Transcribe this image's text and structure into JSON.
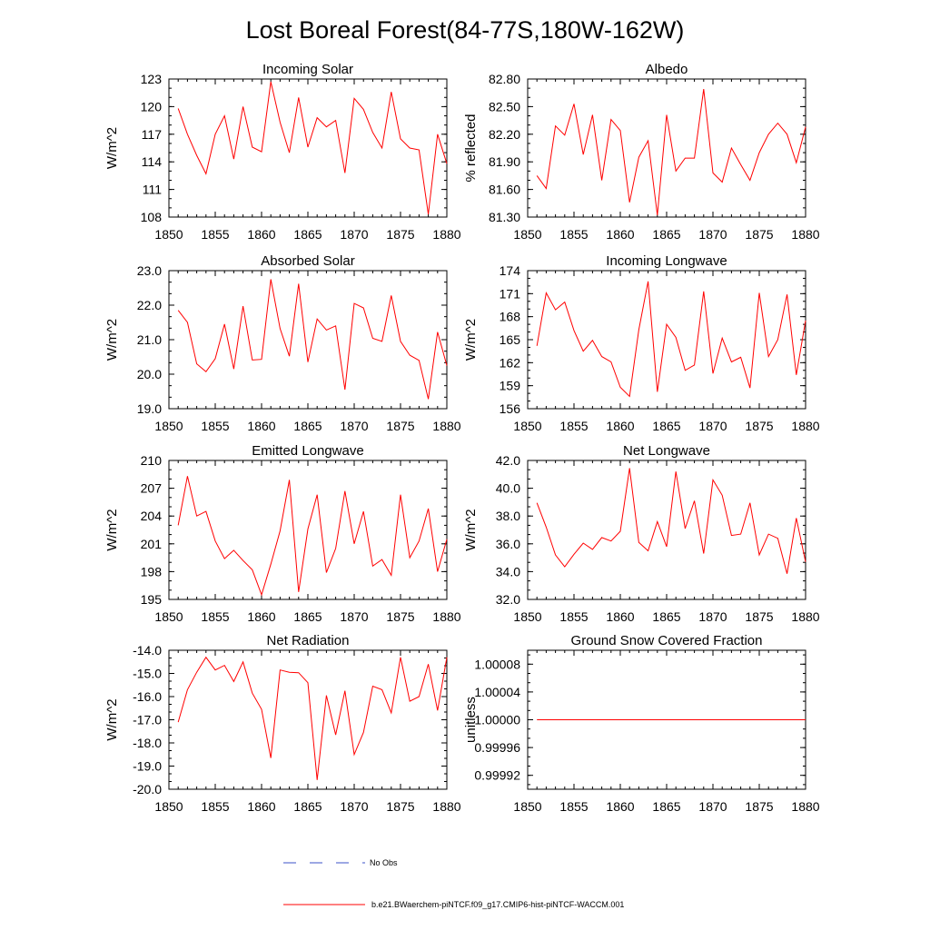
{
  "figure": {
    "title": "Lost Boreal Forest(84-77S,180W-162W)"
  },
  "legend": {
    "items": [
      {
        "label": "No Obs",
        "color": "#3b50c8",
        "style": "dashed"
      },
      {
        "label": "b.e21.BWaerchem-piNTCF.f09_g17.CMIP6-hist-piNTCF-WACCM.001",
        "color": "#ff0000",
        "style": "solid"
      }
    ]
  },
  "chart_data": [
    {
      "type": "line",
      "title": "Incoming Solar",
      "ylabel": "W/m^2",
      "xlim": [
        1850,
        1880
      ],
      "ylim": [
        108,
        123
      ],
      "xticks": [
        "1850",
        "1855",
        "1860",
        "1865",
        "1870",
        "1875",
        "1880"
      ],
      "yticks": [
        "108",
        "111",
        "114",
        "117",
        "120",
        "123"
      ],
      "series": [
        {
          "color": "#ff0000",
          "x": [
            1851,
            1852,
            1853,
            1854,
            1855,
            1856,
            1857,
            1858,
            1859,
            1860,
            1861,
            1862,
            1863,
            1864,
            1865,
            1866,
            1867,
            1868,
            1869,
            1870,
            1871,
            1872,
            1873,
            1874,
            1875,
            1876,
            1877,
            1878,
            1879,
            1880
          ],
          "values": [
            119.8,
            117.0,
            114.7,
            112.7,
            117.0,
            119.0,
            114.3,
            120.0,
            115.6,
            115.1,
            122.7,
            118.3,
            115.0,
            121.0,
            115.6,
            118.8,
            117.8,
            118.5,
            112.8,
            120.9,
            119.7,
            117.2,
            115.5,
            121.6,
            116.5,
            115.5,
            115.3,
            108.3,
            117.0,
            113.8
          ]
        }
      ]
    },
    {
      "type": "line",
      "title": "Albedo",
      "ylabel": "% reflected",
      "xlim": [
        1850,
        1880
      ],
      "ylim": [
        81.3,
        82.8
      ],
      "xticks": [
        "1850",
        "1855",
        "1860",
        "1865",
        "1870",
        "1875",
        "1880"
      ],
      "yticks": [
        "81.30",
        "81.60",
        "81.90",
        "82.20",
        "82.50",
        "82.80"
      ],
      "series": [
        {
          "color": "#ff0000",
          "x": [
            1851,
            1852,
            1853,
            1854,
            1855,
            1856,
            1857,
            1858,
            1859,
            1860,
            1861,
            1862,
            1863,
            1864,
            1865,
            1866,
            1867,
            1868,
            1869,
            1870,
            1871,
            1872,
            1873,
            1874,
            1875,
            1876,
            1877,
            1878,
            1879,
            1880
          ],
          "values": [
            81.75,
            81.61,
            82.29,
            82.19,
            82.53,
            81.98,
            82.41,
            81.7,
            82.36,
            82.24,
            81.46,
            81.95,
            82.13,
            81.32,
            82.41,
            81.8,
            81.94,
            81.94,
            82.69,
            81.78,
            81.68,
            82.05,
            81.87,
            81.7,
            82.0,
            82.2,
            82.32,
            82.2,
            81.89,
            82.28
          ]
        }
      ]
    },
    {
      "type": "line",
      "title": "Absorbed Solar",
      "ylabel": "W/m^2",
      "xlim": [
        1850,
        1880
      ],
      "ylim": [
        19.0,
        23.0
      ],
      "xticks": [
        "1850",
        "1855",
        "1860",
        "1865",
        "1870",
        "1875",
        "1880"
      ],
      "yticks": [
        "19.0",
        "20.0",
        "21.0",
        "22.0",
        "23.0"
      ],
      "series": [
        {
          "color": "#ff0000",
          "x": [
            1851,
            1852,
            1853,
            1854,
            1855,
            1856,
            1857,
            1858,
            1859,
            1860,
            1861,
            1862,
            1863,
            1864,
            1865,
            1866,
            1867,
            1868,
            1869,
            1870,
            1871,
            1872,
            1873,
            1874,
            1875,
            1876,
            1877,
            1878,
            1879,
            1880
          ],
          "values": [
            21.85,
            21.5,
            20.3,
            20.07,
            20.45,
            21.45,
            20.15,
            21.97,
            20.41,
            20.43,
            22.75,
            21.32,
            20.52,
            22.62,
            20.35,
            21.6,
            21.28,
            21.4,
            19.55,
            22.05,
            21.92,
            21.04,
            20.95,
            22.28,
            20.95,
            20.55,
            20.4,
            19.28,
            21.22,
            20.25
          ]
        }
      ]
    },
    {
      "type": "line",
      "title": "Incoming Longwave",
      "ylabel": "W/m^2",
      "xlim": [
        1850,
        1880
      ],
      "ylim": [
        156,
        174
      ],
      "xticks": [
        "1850",
        "1855",
        "1860",
        "1865",
        "1870",
        "1875",
        "1880"
      ],
      "yticks": [
        "156",
        "159",
        "162",
        "165",
        "168",
        "171",
        "174"
      ],
      "series": [
        {
          "color": "#ff0000",
          "x": [
            1851,
            1852,
            1853,
            1854,
            1855,
            1856,
            1857,
            1858,
            1859,
            1860,
            1861,
            1862,
            1863,
            1864,
            1865,
            1866,
            1867,
            1868,
            1869,
            1870,
            1871,
            1872,
            1873,
            1874,
            1875,
            1876,
            1877,
            1878,
            1879,
            1880
          ],
          "values": [
            164.2,
            171.1,
            168.9,
            169.9,
            166.2,
            163.5,
            164.9,
            162.8,
            162.1,
            158.8,
            157.6,
            166.3,
            172.6,
            158.2,
            167.0,
            165.3,
            161.0,
            161.7,
            171.3,
            160.6,
            165.2,
            162.1,
            162.7,
            158.7,
            171.1,
            162.8,
            165.0,
            170.9,
            160.4,
            167.5
          ]
        }
      ]
    },
    {
      "type": "line",
      "title": "Emitted Longwave",
      "ylabel": "W/m^2",
      "xlim": [
        1850,
        1880
      ],
      "ylim": [
        195,
        210
      ],
      "xticks": [
        "1850",
        "1855",
        "1860",
        "1865",
        "1870",
        "1875",
        "1880"
      ],
      "yticks": [
        "195",
        "198",
        "201",
        "204",
        "207",
        "210"
      ],
      "series": [
        {
          "color": "#ff0000",
          "x": [
            1851,
            1852,
            1853,
            1854,
            1855,
            1856,
            1857,
            1858,
            1859,
            1860,
            1861,
            1862,
            1863,
            1864,
            1865,
            1866,
            1867,
            1868,
            1869,
            1870,
            1871,
            1872,
            1873,
            1874,
            1875,
            1876,
            1877,
            1878,
            1879,
            1880
          ],
          "values": [
            203.0,
            208.3,
            204.0,
            204.5,
            201.3,
            199.4,
            200.3,
            199.2,
            198.2,
            195.5,
            198.8,
            202.4,
            207.9,
            195.8,
            202.6,
            206.3,
            197.9,
            200.5,
            206.7,
            201.0,
            204.5,
            198.6,
            199.3,
            197.6,
            206.3,
            199.5,
            201.3,
            204.8,
            198.0,
            201.5
          ]
        }
      ]
    },
    {
      "type": "line",
      "title": "Net Longwave",
      "ylabel": "W/m^2",
      "xlim": [
        1850,
        1880
      ],
      "ylim": [
        32.0,
        42.0
      ],
      "xticks": [
        "1850",
        "1855",
        "1860",
        "1865",
        "1870",
        "1875",
        "1880"
      ],
      "yticks": [
        "32.0",
        "34.0",
        "36.0",
        "38.0",
        "40.0",
        "42.0"
      ],
      "series": [
        {
          "color": "#ff0000",
          "x": [
            1851,
            1852,
            1853,
            1854,
            1855,
            1856,
            1857,
            1858,
            1859,
            1860,
            1861,
            1862,
            1863,
            1864,
            1865,
            1866,
            1867,
            1868,
            1869,
            1870,
            1871,
            1872,
            1873,
            1874,
            1875,
            1876,
            1877,
            1878,
            1879,
            1880
          ],
          "values": [
            38.95,
            37.2,
            35.2,
            34.35,
            35.25,
            36.05,
            35.6,
            36.45,
            36.2,
            36.9,
            41.45,
            36.1,
            35.5,
            37.6,
            35.8,
            41.2,
            37.1,
            39.1,
            35.3,
            40.6,
            39.5,
            36.6,
            36.7,
            38.95,
            35.2,
            36.7,
            36.4,
            33.85,
            37.85,
            34.7
          ]
        }
      ]
    },
    {
      "type": "line",
      "title": "Net Radiation",
      "ylabel": "W/m^2",
      "xlim": [
        1850,
        1880
      ],
      "ylim": [
        -20.0,
        -14.0
      ],
      "xticks": [
        "1850",
        "1855",
        "1860",
        "1865",
        "1870",
        "1875",
        "1880"
      ],
      "yticks": [
        "-20.0",
        "-19.0",
        "-18.0",
        "-17.0",
        "-16.0",
        "-15.0",
        "-14.0"
      ],
      "series": [
        {
          "color": "#ff0000",
          "x": [
            1851,
            1852,
            1853,
            1854,
            1855,
            1856,
            1857,
            1858,
            1859,
            1860,
            1861,
            1862,
            1863,
            1864,
            1865,
            1866,
            1867,
            1868,
            1869,
            1870,
            1871,
            1872,
            1873,
            1874,
            1875,
            1876,
            1877,
            1878,
            1879,
            1880
          ],
          "values": [
            -17.1,
            -15.7,
            -14.95,
            -14.3,
            -14.85,
            -14.65,
            -15.35,
            -14.5,
            -15.85,
            -16.55,
            -18.65,
            -14.85,
            -14.95,
            -14.97,
            -15.4,
            -19.6,
            -15.95,
            -17.65,
            -15.75,
            -18.5,
            -17.55,
            -15.55,
            -15.7,
            -16.7,
            -14.3,
            -16.2,
            -16.0,
            -14.6,
            -16.6,
            -14.3
          ]
        }
      ]
    },
    {
      "type": "line",
      "title": "Ground Snow Covered Fraction",
      "ylabel": "unitless",
      "xlim": [
        1850,
        1880
      ],
      "ylim": [
        0.9999,
        1.0001
      ],
      "xticks": [
        "1850",
        "1855",
        "1860",
        "1865",
        "1870",
        "1875",
        "1880"
      ],
      "yticks": [
        "0.99992",
        "0.99996",
        "1.00000",
        "1.00004",
        "1.00008"
      ],
      "series": [
        {
          "color": "#ff0000",
          "x": [
            1851,
            1880
          ],
          "values": [
            1.0,
            1.0
          ]
        }
      ]
    }
  ]
}
